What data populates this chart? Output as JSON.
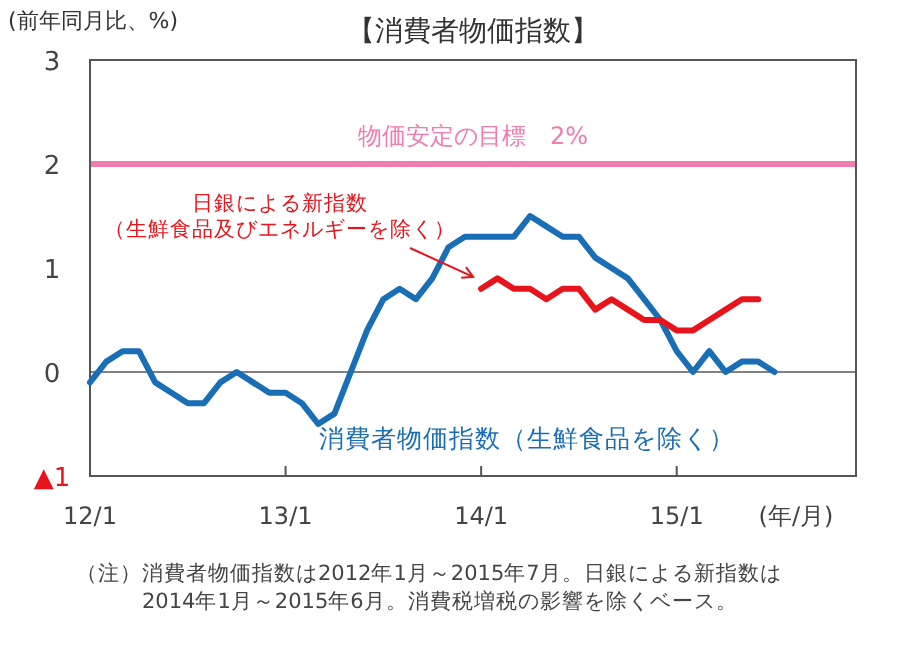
{
  "chart_data": {
    "type": "line",
    "title": "【消費者物価指数】",
    "ylabel": "(前年同月比、%)",
    "xlabel": "(年/月)",
    "xlim": [
      "2012-01",
      "2015-12"
    ],
    "xticks": [
      {
        "value": "2012-01",
        "label": "12/1"
      },
      {
        "value": "2013-01",
        "label": "13/1"
      },
      {
        "value": "2014-01",
        "label": "14/1"
      },
      {
        "value": "2015-01",
        "label": "15/1"
      }
    ],
    "ylim": [
      -1,
      3
    ],
    "yticks": [
      {
        "value": -1,
        "label": "▲1"
      },
      0,
      1,
      2,
      3
    ],
    "grid": false,
    "marker": "none",
    "line_style": "solid",
    "ref_lines": [
      {
        "axis": "y",
        "value": 2,
        "label": "物価安定の目標　2%",
        "color": "#f07cb0"
      },
      {
        "axis": "y",
        "value": 0,
        "label": null,
        "color": "#808080"
      }
    ],
    "series": [
      {
        "name": "消費者物価指数（生鮮食品を除く）",
        "color": "#1a6eb5",
        "x": [
          "2012-01",
          "2012-02",
          "2012-03",
          "2012-04",
          "2012-05",
          "2012-06",
          "2012-07",
          "2012-08",
          "2012-09",
          "2012-10",
          "2012-11",
          "2012-12",
          "2013-01",
          "2013-02",
          "2013-03",
          "2013-04",
          "2013-05",
          "2013-06",
          "2013-07",
          "2013-08",
          "2013-09",
          "2013-10",
          "2013-11",
          "2013-12",
          "2014-01",
          "2014-02",
          "2014-03",
          "2014-04",
          "2014-05",
          "2014-06",
          "2014-07",
          "2014-08",
          "2014-09",
          "2014-10",
          "2014-11",
          "2014-12",
          "2015-01",
          "2015-02",
          "2015-03",
          "2015-04",
          "2015-05",
          "2015-06",
          "2015-07"
        ],
        "values": [
          -0.1,
          0.1,
          0.2,
          0.2,
          -0.1,
          -0.2,
          -0.3,
          -0.3,
          -0.1,
          0,
          -0.1,
          -0.2,
          -0.2,
          -0.3,
          -0.5,
          -0.4,
          0,
          0.4,
          0.7,
          0.8,
          0.7,
          0.9,
          1.2,
          1.3,
          1.3,
          1.3,
          1.3,
          1.5,
          1.4,
          1.3,
          1.3,
          1.1,
          1.0,
          0.9,
          0.7,
          0.5,
          0.2,
          0.0,
          0.2,
          0.0,
          0.1,
          0.1,
          0.0
        ]
      },
      {
        "name": "日銀による新指数（生鮮食品及びエネルギーを除く）",
        "color": "#e8141c",
        "x": [
          "2014-01",
          "2014-02",
          "2014-03",
          "2014-04",
          "2014-05",
          "2014-06",
          "2014-07",
          "2014-08",
          "2014-09",
          "2014-10",
          "2014-11",
          "2014-12",
          "2015-01",
          "2015-02",
          "2015-03",
          "2015-04",
          "2015-05",
          "2015-06"
        ],
        "values": [
          0.8,
          0.9,
          0.8,
          0.8,
          0.7,
          0.8,
          0.8,
          0.6,
          0.7,
          0.6,
          0.5,
          0.5,
          0.4,
          0.4,
          0.5,
          0.6,
          0.7,
          0.7
        ]
      }
    ],
    "annotations": [
      "（注）消費者物価指数は2012年1月～2015年7月。日銀による新指数は\n　　　2014年1月～2015年6月。消費税増税の影響を除くベース。"
    ]
  }
}
